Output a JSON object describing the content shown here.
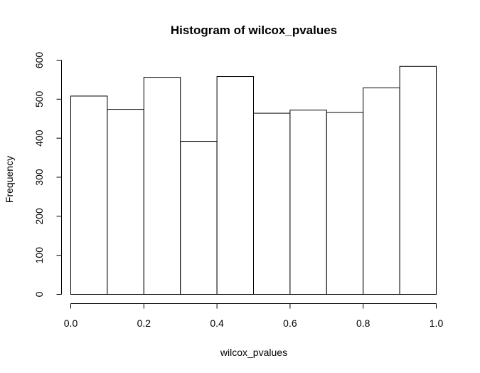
{
  "chart_data": {
    "type": "bar",
    "title": "Histogram of wilcox_pvalues",
    "xlabel": "wilcox_pvalues",
    "ylabel": "Frequency",
    "bins": [
      {
        "start": 0.0,
        "end": 0.1,
        "count": 508
      },
      {
        "start": 0.1,
        "end": 0.2,
        "count": 474
      },
      {
        "start": 0.2,
        "end": 0.3,
        "count": 556
      },
      {
        "start": 0.3,
        "end": 0.4,
        "count": 392
      },
      {
        "start": 0.4,
        "end": 0.5,
        "count": 558
      },
      {
        "start": 0.5,
        "end": 0.6,
        "count": 464
      },
      {
        "start": 0.6,
        "end": 0.7,
        "count": 472
      },
      {
        "start": 0.7,
        "end": 0.8,
        "count": 466
      },
      {
        "start": 0.8,
        "end": 0.9,
        "count": 529
      },
      {
        "start": 0.9,
        "end": 1.0,
        "count": 584
      }
    ],
    "xlim": [
      0,
      1
    ],
    "ylim": [
      0,
      600
    ],
    "xticks": [
      0.0,
      0.2,
      0.4,
      0.6,
      0.8,
      1.0
    ],
    "xtick_labels": [
      "0.0",
      "0.2",
      "0.4",
      "0.6",
      "0.8",
      "1.0"
    ],
    "yticks": [
      0,
      100,
      200,
      300,
      400,
      500,
      600
    ],
    "ytick_labels": [
      "0",
      "100",
      "200",
      "300",
      "400",
      "500",
      "600"
    ],
    "grid": false,
    "bar_fill": "#ffffff",
    "bar_stroke": "#000000"
  }
}
